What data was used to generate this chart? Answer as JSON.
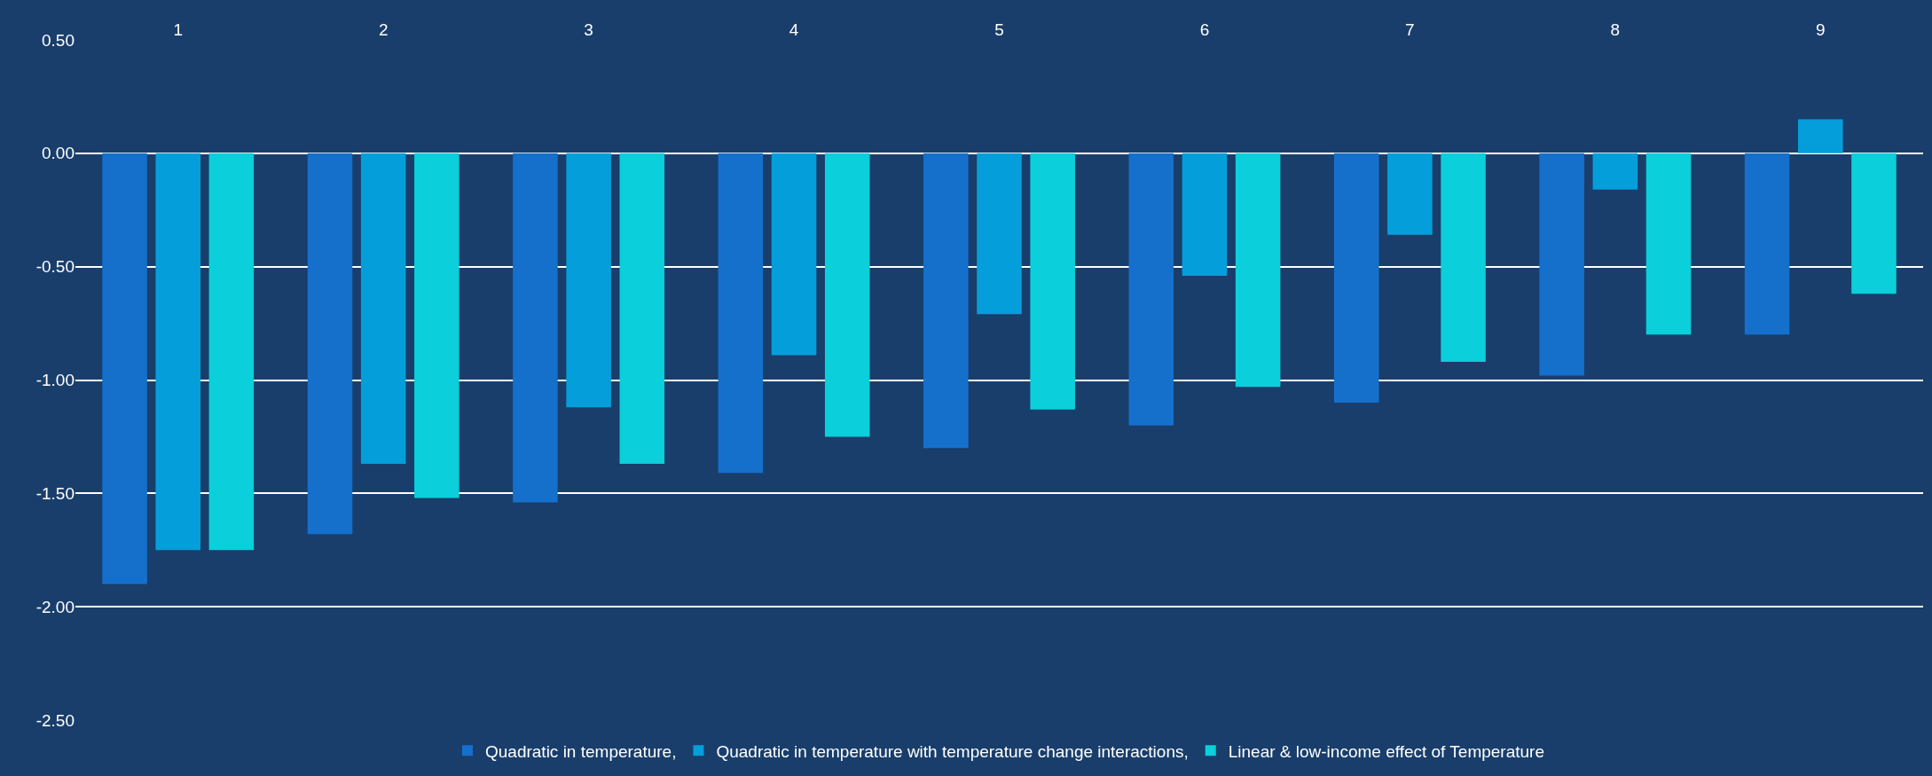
{
  "chart_data": {
    "type": "bar",
    "categories": [
      "1",
      "2",
      "3",
      "4",
      "5",
      "6",
      "7",
      "8",
      "9"
    ],
    "series": [
      {
        "name": "Quadratic in temperature,",
        "color": "#1570cc",
        "values": [
          -1.9,
          -1.68,
          -1.54,
          -1.41,
          -1.3,
          -1.2,
          -1.1,
          -0.98,
          -0.8
        ]
      },
      {
        "name": "Quadratic in temperature with temperature change interactions,",
        "color": "#049fda",
        "values": [
          -1.75,
          -1.37,
          -1.12,
          -0.89,
          -0.71,
          -0.54,
          -0.36,
          -0.16,
          0.15
        ]
      },
      {
        "name": "Linear & low-income effect of Temperature",
        "color": "#0bcfda",
        "values": [
          -1.75,
          -1.52,
          -1.37,
          -1.25,
          -1.13,
          -1.03,
          -0.92,
          -0.8,
          -0.62
        ]
      }
    ],
    "ylim": [
      -2.5,
      0.5
    ],
    "yticks": [
      {
        "value": 0.5,
        "label": "0.50"
      },
      {
        "value": 0,
        "label": "0.00"
      },
      {
        "value": -0.5,
        "label": "-0.50"
      },
      {
        "value": -1,
        "label": "-1.00"
      },
      {
        "value": -1.5,
        "label": "-1.50"
      },
      {
        "value": -2,
        "label": "-2.00"
      },
      {
        "value": -2.5,
        "label": "-2.50"
      }
    ],
    "grid": "y",
    "legend": "bottom"
  }
}
